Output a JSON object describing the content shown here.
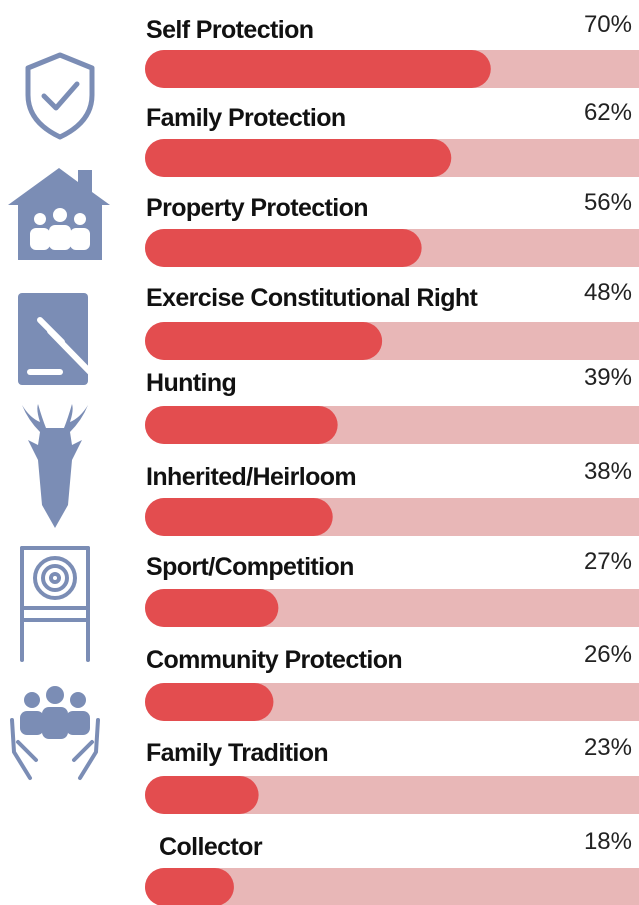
{
  "chart_data": {
    "type": "bar",
    "orientation": "horizontal",
    "categories": [
      "Self Protection",
      "Family Protection",
      "Property Protection",
      "Exercise Constitutional Right",
      "Hunting",
      "Inherited/Heirloom",
      "Sport/Competition",
      "Community Protection",
      "Family Tradition",
      "Collector"
    ],
    "values": [
      70,
      62,
      56,
      48,
      39,
      38,
      27,
      26,
      23,
      18
    ],
    "value_labels": [
      "70%",
      "62%",
      "56%",
      "48%",
      "39%",
      "38%",
      "27%",
      "26%",
      "23%",
      "18%"
    ],
    "color": "#e34d4f",
    "track_color": "#e8b7b7",
    "xlim": [
      0,
      100
    ]
  }
}
